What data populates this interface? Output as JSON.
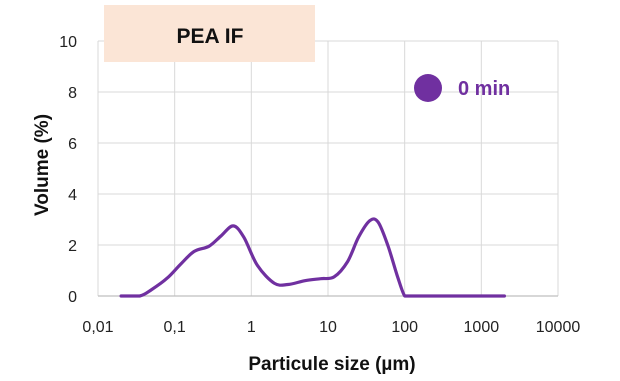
{
  "chart_data": {
    "type": "line",
    "title": "PEA IF",
    "xlabel": "Particule size (µm)",
    "ylabel": "Volume (%)",
    "x_scale": "log",
    "xlim": [
      0.01,
      10000
    ],
    "ylim": [
      0,
      10
    ],
    "x_tick_labels": [
      "0,01",
      "0,1",
      "1",
      "10",
      "100",
      "1000",
      "10000"
    ],
    "y_tick_labels": [
      "0",
      "2",
      "4",
      "6",
      "8",
      "10"
    ],
    "grid": true,
    "legend_position": "top-right",
    "series": [
      {
        "name": "0 min",
        "color": "#7030a0",
        "x": [
          0.02,
          0.035,
          0.05,
          0.08,
          0.12,
          0.18,
          0.28,
          0.4,
          0.58,
          0.8,
          1.2,
          2,
          3,
          5,
          8,
          12,
          18,
          25,
          35,
          45,
          60,
          80,
          100,
          120,
          200,
          500,
          1000,
          2000
        ],
        "y": [
          0,
          0,
          0.25,
          0.7,
          1.25,
          1.75,
          1.95,
          2.35,
          2.75,
          2.3,
          1.2,
          0.5,
          0.45,
          0.6,
          0.68,
          0.75,
          1.35,
          2.3,
          2.95,
          2.9,
          2.0,
          0.8,
          0,
          0,
          0,
          0,
          0,
          0
        ]
      }
    ]
  }
}
